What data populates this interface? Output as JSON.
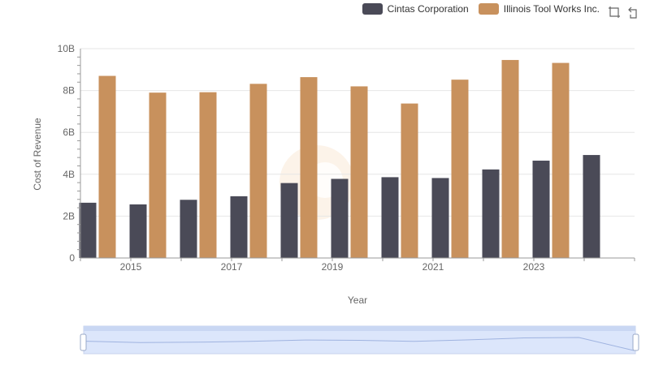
{
  "legend": [
    {
      "name": "Cintas Corporation",
      "color": "#4a4a57"
    },
    {
      "name": "Illinois Tool Works Inc.",
      "color": "#c8915d"
    }
  ],
  "toolbar": {
    "icons": [
      "zoom-icon",
      "restore-icon"
    ]
  },
  "chart_data": {
    "type": "bar",
    "ylabel": "Cost of Revenue",
    "xlabel": "Year",
    "ylim": [
      0,
      10000000000
    ],
    "y_ticks": [
      "0",
      "2B",
      "4B",
      "6B",
      "8B",
      "10B"
    ],
    "x_ticks": [
      "2015",
      "2017",
      "2019",
      "2021",
      "2023"
    ],
    "categories": [
      "2014",
      "2015",
      "2016",
      "2017",
      "2018",
      "2019",
      "2020",
      "2021",
      "2022",
      "2023",
      "2024"
    ],
    "series": [
      {
        "name": "Cintas Corporation",
        "color": "#4a4a57",
        "values": [
          2640000000,
          2560000000,
          2780000000,
          2950000000,
          3580000000,
          3780000000,
          3860000000,
          3820000000,
          4230000000,
          4650000000,
          4920000000
        ]
      },
      {
        "name": "Illinois Tool Works Inc.",
        "color": "#c8915d",
        "values": [
          8700000000,
          7900000000,
          7920000000,
          8320000000,
          8640000000,
          8200000000,
          7380000000,
          8520000000,
          9460000000,
          9320000000,
          null
        ]
      }
    ],
    "grid": true,
    "legend_position": "top-right",
    "data_zoom": true
  }
}
